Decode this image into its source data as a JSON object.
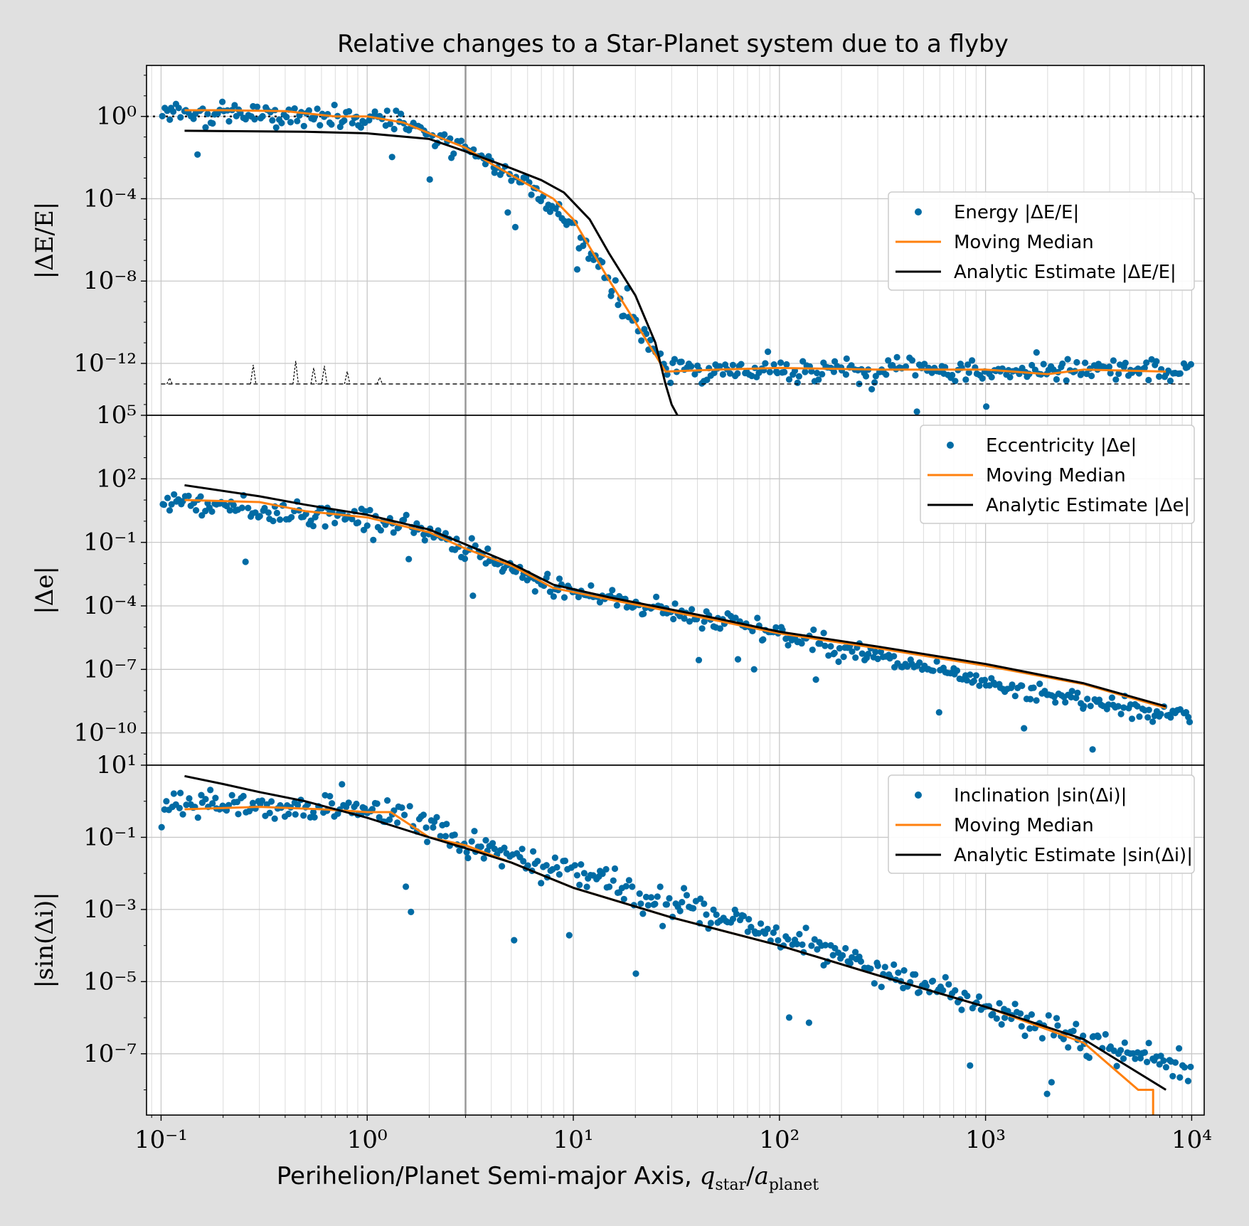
{
  "figure": {
    "title": "Relative changes to a Star-Planet system due to a flyby",
    "xlabel": "Perihelion/Planet Semi-major Axis, q_star/a_planet",
    "background": "#e0e0e0",
    "colors": {
      "points": "#006ba4",
      "median": "#ff800e",
      "analytic": "#000000",
      "marker_line": "#999999"
    }
  },
  "chart_data": [
    {
      "type": "scatter",
      "panel": "energy",
      "ylabel": "|ΔE/E|",
      "xscale": "log",
      "yscale": "log",
      "xlim": [
        0.085,
        11500
      ],
      "ylim": [
        3e-15,
        300.0
      ],
      "xticks": [
        "10⁻¹",
        "10⁰",
        "10¹",
        "10²",
        "10³",
        "10⁴"
      ],
      "yticks": [
        {
          "v": 1,
          "label": "10⁰"
        },
        {
          "v": 0.0001,
          "label": "10⁻⁴"
        },
        {
          "v": 1e-08,
          "label": "10⁻⁸"
        },
        {
          "v": 1e-12,
          "label": "10⁻¹²"
        }
      ],
      "reference_line": {
        "y": 1,
        "style": "dotted"
      },
      "vertical_line": {
        "x": 3
      },
      "legend": {
        "placement": "right",
        "entries": [
          "Energy |ΔE/E|",
          "Moving Median",
          "Analytic Estimate |ΔE/E|"
        ]
      },
      "series": [
        {
          "name": "Energy |ΔE/E|",
          "kind": "points",
          "segments": [
            [
              0.1,
              2.0
            ],
            [
              1.5,
              0.5
            ],
            [
              3,
              0.02
            ],
            [
              6,
              0.0005
            ],
            [
              10,
              5e-06
            ],
            [
              20,
              1e-10
            ],
            [
              28,
              5e-13
            ],
            [
              10000,
              4e-13
            ]
          ],
          "scatter_dex": 0.5,
          "n": 430
        },
        {
          "name": "Moving Median",
          "kind": "line",
          "x": [
            0.13,
            0.2,
            0.4,
            0.7,
            1.0,
            1.5,
            2.0,
            3.0,
            4.0,
            6.0,
            8.0,
            10,
            15,
            20,
            28,
            50,
            100,
            300,
            1000,
            2000,
            3000,
            7500
          ],
          "y": [
            2.0,
            2.0,
            1.8,
            1.0,
            1.0,
            0.5,
            0.15,
            0.03,
            0.005,
            0.0005,
            0.0001,
            1e-05,
            1e-08,
            1e-10,
            4e-13,
            5e-13,
            6e-13,
            5e-13,
            5e-13,
            3e-13,
            5e-13,
            4e-13
          ]
        },
        {
          "name": "Analytic Estimate |ΔE/E|",
          "kind": "line",
          "x": [
            0.13,
            0.5,
            1.0,
            2.0,
            3.0,
            5.0,
            7.0,
            9.0,
            12,
            15,
            20,
            25,
            28,
            30,
            32
          ],
          "y": [
            0.2,
            0.18,
            0.15,
            0.08,
            0.02,
            0.003,
            0.0008,
            0.0002,
            1e-05,
            2e-07,
            2e-09,
            1e-11,
            1e-13,
            1e-14,
            3e-15
          ]
        },
        {
          "name": "",
          "kind": "dashed-baseline",
          "y": 1e-13,
          "x_range": [
            0.1,
            10000
          ]
        }
      ]
    },
    {
      "type": "scatter",
      "panel": "eccentricity",
      "ylabel": "|Δe|",
      "xscale": "log",
      "yscale": "log",
      "xlim": [
        0.085,
        11500
      ],
      "ylim": [
        3e-12,
        100000.0
      ],
      "xticks": [
        "10⁻¹",
        "10⁰",
        "10¹",
        "10²",
        "10³",
        "10⁴"
      ],
      "yticks": [
        {
          "v": 100000.0,
          "label": "10⁵"
        },
        {
          "v": 100.0,
          "label": "10²"
        },
        {
          "v": 0.1,
          "label": "10⁻¹"
        },
        {
          "v": 0.0001,
          "label": "10⁻⁴"
        },
        {
          "v": 1e-07,
          "label": "10⁻⁷"
        },
        {
          "v": 1e-10,
          "label": "10⁻¹⁰"
        }
      ],
      "vertical_line": {
        "x": 3
      },
      "legend": {
        "placement": "upper right",
        "entries": [
          "Eccentricity |Δe|",
          "Moving Median",
          "Analytic Estimate |Δe|"
        ]
      },
      "series": [
        {
          "name": "Eccentricity |Δe|",
          "kind": "points",
          "segments": [
            [
              0.1,
              10
            ],
            [
              0.5,
              2
            ],
            [
              1.0,
              1.5
            ],
            [
              2.0,
              0.3
            ],
            [
              3,
              0.05
            ],
            [
              6,
              0.002
            ],
            [
              10,
              0.0005
            ],
            [
              100,
              5e-06
            ],
            [
              1000,
              2e-08
            ],
            [
              10000,
              5e-10
            ]
          ],
          "scatter_dex": 0.45,
          "n": 430
        },
        {
          "name": "Moving Median",
          "kind": "line",
          "x": [
            0.13,
            0.3,
            0.5,
            1.0,
            2.0,
            3.0,
            5.0,
            8.0,
            15,
            50,
            100,
            300,
            1000,
            3000,
            7500
          ],
          "y": [
            10,
            8,
            3,
            1.5,
            0.3,
            0.05,
            0.008,
            0.0007,
            0.0002,
            2e-05,
            5e-06,
            1e-06,
            1.5e-07,
            2e-08,
            1.5e-09
          ]
        },
        {
          "name": "Analytic Estimate |Δe|",
          "kind": "line",
          "x": [
            0.13,
            0.3,
            0.5,
            1.0,
            2.0,
            3.0,
            5.0,
            8.0,
            15,
            50,
            100,
            300,
            1000,
            3000,
            7500
          ],
          "y": [
            50,
            15,
            6,
            2,
            0.4,
            0.08,
            0.01,
            0.001,
            0.00025,
            2.5e-05,
            6e-06,
            1.2e-06,
            1.8e-07,
            2.2e-08,
            1.8e-09
          ]
        }
      ]
    },
    {
      "type": "scatter",
      "panel": "inclination",
      "ylabel": "|sin(Δi)|",
      "xscale": "log",
      "yscale": "log",
      "xlim": [
        0.085,
        11500
      ],
      "ylim": [
        2e-09,
        10
      ],
      "xticks": [
        "10⁻¹",
        "10⁰",
        "10¹",
        "10²",
        "10³",
        "10⁴"
      ],
      "yticks": [
        {
          "v": 10,
          "label": "10¹"
        },
        {
          "v": 0.1,
          "label": "10⁻¹"
        },
        {
          "v": 0.001,
          "label": "10⁻³"
        },
        {
          "v": 1e-05,
          "label": "10⁻⁵"
        },
        {
          "v": 1e-07,
          "label": "10⁻⁷"
        }
      ],
      "vertical_line": {
        "x": 3
      },
      "legend": {
        "placement": "upper right",
        "entries": [
          "Inclination |sin(Δi)|",
          "Moving Median",
          "Analytic Estimate |sin(Δi)|"
        ]
      },
      "series": [
        {
          "name": "Inclination |sin(Δi)|",
          "kind": "points",
          "segments": [
            [
              0.1,
              0.8
            ],
            [
              1.0,
              0.6
            ],
            [
              2.0,
              0.2
            ],
            [
              3,
              0.06
            ],
            [
              10,
              0.01
            ],
            [
              100,
              0.0002
            ],
            [
              1000,
              2e-06
            ],
            [
              10000,
              3e-08
            ]
          ],
          "scatter_dex": 0.35,
          "n": 430
        },
        {
          "name": "Moving Median",
          "kind": "line",
          "x": [
            0.13,
            0.3,
            0.6,
            1.0,
            1.3,
            2.0,
            3.0,
            5.0,
            10,
            30,
            100,
            300,
            1000,
            3000,
            5500,
            6500,
            6500
          ],
          "y": [
            0.6,
            0.7,
            0.6,
            0.5,
            0.5,
            0.1,
            0.06,
            0.02,
            0.004,
            0.0006,
            0.0001,
            1.5e-05,
            2e-06,
            2e-07,
            1e-08,
            1e-08,
            2e-09
          ]
        },
        {
          "name": "Analytic Estimate |sin(Δi)|",
          "kind": "line",
          "x": [
            0.13,
            0.2,
            0.3,
            0.5,
            1.0,
            2.0,
            3.0,
            5.0,
            10,
            30,
            100,
            300,
            1000,
            3000,
            7500
          ],
          "y": [
            5,
            3,
            1.8,
            1.0,
            0.35,
            0.1,
            0.05,
            0.02,
            0.004,
            0.0006,
            0.0001,
            1.5e-05,
            2e-06,
            2.5e-07,
            1e-08
          ]
        }
      ]
    }
  ]
}
